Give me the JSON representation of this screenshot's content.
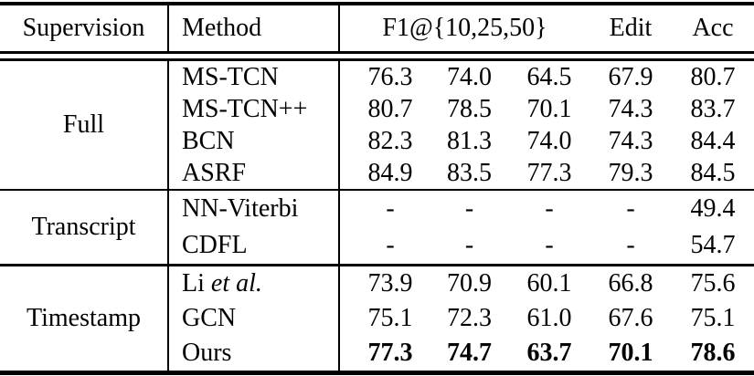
{
  "table": {
    "header": {
      "supervision": "Supervision",
      "method": "Method",
      "f1_group": "F1@{10,25,50}",
      "edit": "Edit",
      "acc": "Acc"
    },
    "sections": [
      {
        "supervision": "Full",
        "rows": [
          {
            "method": "MS-TCN",
            "method_italic": "",
            "values": [
              "76.3",
              "74.0",
              "64.5",
              "67.9",
              "80.7"
            ]
          },
          {
            "method": "MS-TCN++",
            "method_italic": "",
            "values": [
              "80.7",
              "78.5",
              "70.1",
              "74.3",
              "83.7"
            ]
          },
          {
            "method": "BCN",
            "method_italic": "",
            "values": [
              "82.3",
              "81.3",
              "74.0",
              "74.3",
              "84.4"
            ]
          },
          {
            "method": "ASRF",
            "method_italic": "",
            "values": [
              "84.9",
              "83.5",
              "77.3",
              "79.3",
              "84.5"
            ]
          }
        ]
      },
      {
        "supervision": "Transcript",
        "rows": [
          {
            "method": "NN-Viterbi",
            "method_italic": "",
            "values": [
              "-",
              "-",
              "-",
              "-",
              "49.4"
            ]
          },
          {
            "method": "CDFL",
            "method_italic": "",
            "values": [
              "-",
              "-",
              "-",
              "-",
              "54.7"
            ]
          }
        ]
      },
      {
        "supervision": "Timestamp",
        "rows": [
          {
            "method": "Li",
            "method_italic": "et al.",
            "values": [
              "73.9",
              "70.9",
              "60.1",
              "66.8",
              "75.6"
            ]
          },
          {
            "method": "GCN",
            "method_italic": "",
            "values": [
              "75.1",
              "72.3",
              "61.0",
              "67.6",
              "75.1"
            ]
          },
          {
            "method": "Ours",
            "method_italic": "",
            "values": [
              "77.3",
              "74.7",
              "63.7",
              "70.1",
              "78.6"
            ],
            "bold": true
          }
        ]
      }
    ],
    "colors": {
      "text": "#000000",
      "background": "#ffffff",
      "rule": "#000000"
    }
  }
}
